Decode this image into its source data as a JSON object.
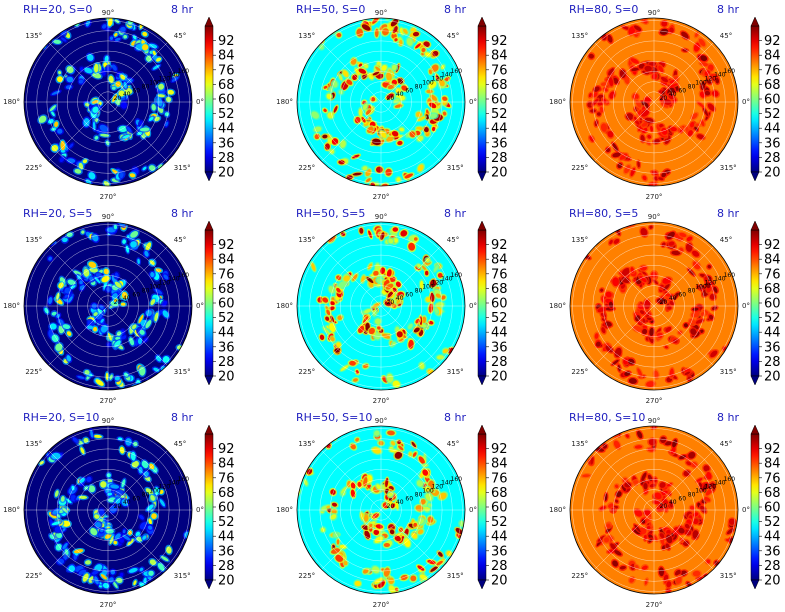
{
  "chart_data": {
    "type": "heatmap",
    "layout": {
      "rows": 3,
      "cols": 3
    },
    "projection": "polar",
    "angle_ticks": [
      "0°",
      "45°",
      "90°",
      "135°",
      "180°",
      "225°",
      "270°",
      "315°"
    ],
    "radial_ticks": [
      "20",
      "40",
      "60",
      "80",
      "100",
      "120",
      "140",
      "160"
    ],
    "colorbar": {
      "colormap": "jet",
      "range": [
        20,
        100
      ],
      "ticks": [
        "20",
        "28",
        "36",
        "44",
        "52",
        "60",
        "68",
        "76",
        "84",
        "92"
      ]
    },
    "panels": [
      {
        "title": "RH=20, S=0",
        "time_label": "8 hr",
        "rh": 20,
        "s": 0,
        "background_value": 20
      },
      {
        "title": "RH=50, S=0",
        "time_label": "8 hr",
        "rh": 50,
        "s": 0,
        "background_value": 50
      },
      {
        "title": "RH=80, S=0",
        "time_label": "8 hr",
        "rh": 80,
        "s": 0,
        "background_value": 80
      },
      {
        "title": "RH=20, S=5",
        "time_label": "8 hr",
        "rh": 20,
        "s": 5,
        "background_value": 20
      },
      {
        "title": "RH=50, S=5",
        "time_label": "8 hr",
        "rh": 50,
        "s": 5,
        "background_value": 50
      },
      {
        "title": "RH=80, S=5",
        "time_label": "8 hr",
        "rh": 80,
        "s": 5,
        "background_value": 80
      },
      {
        "title": "RH=20, S=10",
        "time_label": "8 hr",
        "rh": 20,
        "s": 10,
        "background_value": 20
      },
      {
        "title": "RH=50, S=10",
        "time_label": "8 hr",
        "rh": 50,
        "s": 10,
        "background_value": 50
      },
      {
        "title": "RH=80, S=10",
        "time_label": "8 hr",
        "rh": 80,
        "s": 10,
        "background_value": 80
      }
    ]
  },
  "colors": {
    "title": "#1f1fbf",
    "axis_text": "#222222",
    "grid": "#ffffff",
    "frame": "#000000"
  }
}
